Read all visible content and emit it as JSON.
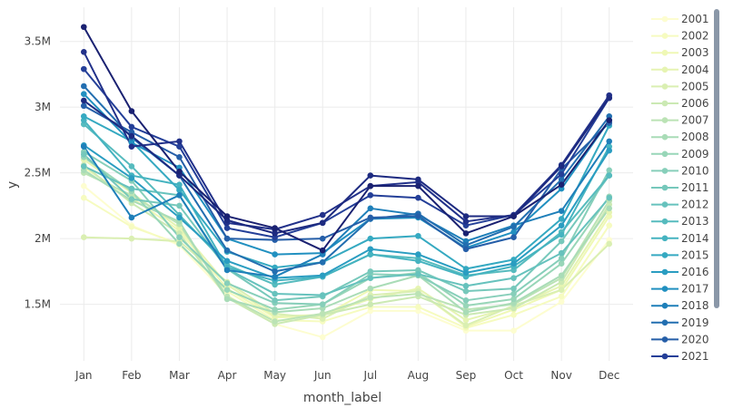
{
  "chart_data": {
    "type": "line",
    "xlabel": "month_label",
    "ylabel": "y",
    "categories": [
      "Jan",
      "Feb",
      "Mar",
      "Apr",
      "May",
      "Jun",
      "Jul",
      "Aug",
      "Sep",
      "Oct",
      "Nov",
      "Dec"
    ],
    "y_ticks": [
      {
        "value": 1500000,
        "label": "1.5M"
      },
      {
        "value": 2000000,
        "label": "2M"
      },
      {
        "value": 2500000,
        "label": "2.5M"
      },
      {
        "value": 3000000,
        "label": "3M"
      },
      {
        "value": 3500000,
        "label": "3.5M"
      }
    ],
    "ylim": [
      1070000,
      3760000
    ],
    "grid": true,
    "legend_position": "right",
    "series": [
      {
        "name": "2001",
        "color": "#fdfdd0",
        "values": [
          2400000,
          2100000,
          1950000,
          1570000,
          1350000,
          1250000,
          1450000,
          1450000,
          1300000,
          1300000,
          1520000,
          1990000
        ]
      },
      {
        "name": "2002",
        "color": "#f6fbc0",
        "values": [
          2310000,
          2090000,
          1960000,
          1600000,
          1380000,
          1370000,
          1480000,
          1480000,
          1320000,
          1420000,
          1560000,
          2100000
        ]
      },
      {
        "name": "2003",
        "color": "#eff8b5",
        "values": [
          2540000,
          2310000,
          2060000,
          1620000,
          1400000,
          1410000,
          1610000,
          1600000,
          1330000,
          1460000,
          1610000,
          2170000
        ]
      },
      {
        "name": "2004",
        "color": "#e6f4b2",
        "values": [
          2600000,
          2350000,
          2080000,
          1650000,
          1410000,
          1420000,
          1540000,
          1620000,
          1380000,
          1480000,
          1640000,
          2200000
        ]
      },
      {
        "name": "2005",
        "color": "#daefb2",
        "values": [
          2010000,
          2000000,
          1980000,
          1670000,
          1430000,
          1390000,
          1570000,
          1600000,
          1340000,
          1490000,
          1610000,
          1960000
        ]
      },
      {
        "name": "2006",
        "color": "#cbe9b3",
        "values": [
          2560000,
          2270000,
          2040000,
          1550000,
          1350000,
          1420000,
          1500000,
          1560000,
          1420000,
          1470000,
          1670000,
          2260000
        ]
      },
      {
        "name": "2007",
        "color": "#bbe3b5",
        "values": [
          2500000,
          2330000,
          2110000,
          1560000,
          1370000,
          1430000,
          1550000,
          1580000,
          1460000,
          1500000,
          1700000,
          2290000
        ]
      },
      {
        "name": "2008",
        "color": "#a9dcb7",
        "values": [
          2520000,
          2290000,
          2130000,
          1540000,
          1440000,
          1470000,
          1620000,
          1720000,
          1440000,
          1510000,
          1720000,
          2230000
        ]
      },
      {
        "name": "2009",
        "color": "#98d6b8",
        "values": [
          2620000,
          2360000,
          1960000,
          1610000,
          1460000,
          1500000,
          1700000,
          1740000,
          1490000,
          1540000,
          1810000,
          2320000
        ]
      },
      {
        "name": "2010",
        "color": "#87cfba",
        "values": [
          2660000,
          2440000,
          2010000,
          1660000,
          1510000,
          1500000,
          1730000,
          1720000,
          1530000,
          1580000,
          1850000,
          2520000
        ]
      },
      {
        "name": "2011",
        "color": "#76c8bb",
        "values": [
          2640000,
          2300000,
          2250000,
          1770000,
          1530000,
          1560000,
          1750000,
          1760000,
          1600000,
          1620000,
          1980000,
          2480000
        ]
      },
      {
        "name": "2012",
        "color": "#66c2bd",
        "values": [
          2550000,
          2380000,
          2330000,
          1770000,
          1580000,
          1570000,
          1700000,
          1730000,
          1640000,
          1700000,
          1890000,
          2310000
        ]
      },
      {
        "name": "2013",
        "color": "#56bbbe",
        "values": [
          2870000,
          2550000,
          2180000,
          1800000,
          1650000,
          1710000,
          1880000,
          1850000,
          1720000,
          1760000,
          2050000,
          2480000
        ]
      },
      {
        "name": "2014",
        "color": "#45b3c0",
        "values": [
          2900000,
          2480000,
          2410000,
          1780000,
          1680000,
          1710000,
          1880000,
          1830000,
          1710000,
          1790000,
          2030000,
          2700000
        ]
      },
      {
        "name": "2015",
        "color": "#35a9c1",
        "values": [
          2930000,
          2740000,
          2370000,
          1900000,
          1780000,
          1820000,
          2000000,
          2020000,
          1770000,
          1840000,
          2150000,
          2860000
        ]
      },
      {
        "name": "2016",
        "color": "#2a9dc1",
        "values": [
          2710000,
          2460000,
          2160000,
          1830000,
          1700000,
          1720000,
          1920000,
          1880000,
          1740000,
          1810000,
          2100000,
          2670000
        ]
      },
      {
        "name": "2017",
        "color": "#2190c0",
        "values": [
          3100000,
          2730000,
          2540000,
          2000000,
          1880000,
          1890000,
          2150000,
          2160000,
          1930000,
          2050000,
          2380000,
          2900000
        ]
      },
      {
        "name": "2018",
        "color": "#1e7fb9",
        "values": [
          2700000,
          2160000,
          2330000,
          1760000,
          1710000,
          1880000,
          2230000,
          2180000,
          1980000,
          2100000,
          2210000,
          2740000
        ]
      },
      {
        "name": "2019",
        "color": "#226eb0",
        "values": [
          3160000,
          2770000,
          2480000,
          1910000,
          1750000,
          1820000,
          2150000,
          2190000,
          1950000,
          2090000,
          2450000,
          2930000
        ]
      },
      {
        "name": "2020",
        "color": "#255ea8",
        "values": [
          3010000,
          2810000,
          2620000,
          2000000,
          1990000,
          2000000,
          2160000,
          2170000,
          1920000,
          2010000,
          2530000,
          2880000
        ]
      },
      {
        "name": "2021",
        "color": "#243f98",
        "values": [
          3290000,
          2850000,
          2700000,
          2080000,
          2010000,
          2120000,
          2330000,
          2310000,
          2100000,
          2180000,
          2490000,
          3070000
        ]
      },
      {
        "name": "",
        "color": "#22318a",
        "values": [
          3420000,
          2700000,
          2740000,
          2120000,
          2070000,
          2180000,
          2400000,
          2430000,
          2130000,
          2180000,
          2560000,
          3090000
        ]
      },
      {
        "name": "",
        "color": "#1d2a80",
        "values": [
          3050000,
          2780000,
          2480000,
          2140000,
          2040000,
          2120000,
          2480000,
          2450000,
          2170000,
          2170000,
          2550000,
          3070000
        ]
      },
      {
        "name": "",
        "color": "#1a2171",
        "values": [
          3610000,
          2970000,
          2510000,
          2170000,
          2080000,
          1910000,
          2400000,
          2400000,
          2040000,
          2170000,
          2410000,
          2900000
        ]
      }
    ]
  }
}
